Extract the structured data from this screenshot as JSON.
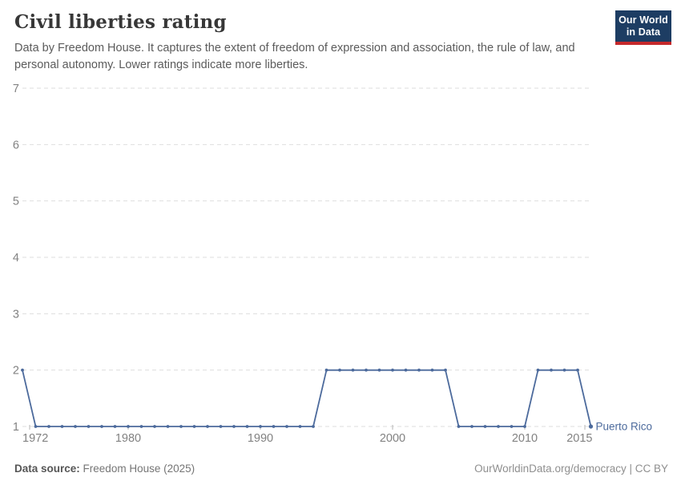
{
  "header": {
    "title": "Civil liberties rating",
    "subtitle": "Data by Freedom House. It captures the extent of freedom of expression and association, the rule of law, and personal autonomy. Lower ratings indicate more liberties.",
    "logo": {
      "line1": "Our World",
      "line2": "in Data"
    }
  },
  "chart_data": {
    "type": "line",
    "title": "Civil liberties rating",
    "entity": "Puerto Rico",
    "x": [
      1972,
      1973,
      1974,
      1975,
      1976,
      1977,
      1978,
      1979,
      1980,
      1981,
      1982,
      1983,
      1984,
      1985,
      1986,
      1987,
      1988,
      1989,
      1990,
      1991,
      1992,
      1993,
      1994,
      1995,
      1996,
      1997,
      1998,
      1999,
      2000,
      2001,
      2002,
      2003,
      2004,
      2005,
      2006,
      2007,
      2008,
      2009,
      2010,
      2011,
      2012,
      2013,
      2014,
      2015
    ],
    "series": [
      {
        "name": "Puerto Rico",
        "values": [
          2,
          1,
          1,
          1,
          1,
          1,
          1,
          1,
          1,
          1,
          1,
          1,
          1,
          1,
          1,
          1,
          1,
          1,
          1,
          1,
          1,
          1,
          1,
          2,
          2,
          2,
          2,
          2,
          2,
          2,
          2,
          2,
          2,
          1,
          1,
          1,
          1,
          1,
          1,
          2,
          2,
          2,
          2,
          1
        ]
      }
    ],
    "xlim": [
      1972,
      2015
    ],
    "ylim": [
      1,
      7
    ],
    "yticks": [
      1,
      2,
      3,
      4,
      5,
      6,
      7
    ],
    "xticks": [
      1972,
      1980,
      1990,
      2000,
      2010,
      2015
    ],
    "grid": true,
    "legend_position": "end-of-line-label",
    "line_color": "#4C6A9C",
    "grid_color": "#dedede",
    "axis_text_color": "#828282"
  },
  "footer": {
    "datasource_label": "Data source:",
    "datasource_value": "Freedom House (2025)",
    "attribution": "OurWorldinData.org/democracy | CC BY"
  },
  "colors": {
    "logo_bg": "#1d3d63",
    "logo_bar": "#c5292b",
    "title": "#373737",
    "subtitle": "#5b5b5b"
  }
}
